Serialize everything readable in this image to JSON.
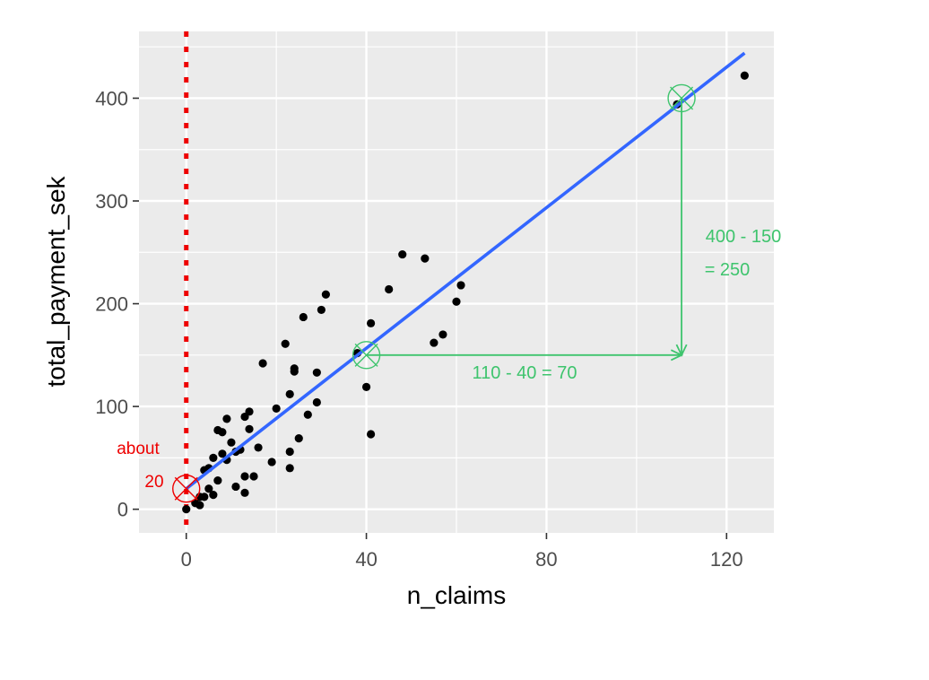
{
  "chart_data": {
    "type": "scatter",
    "xlabel": "n_claims",
    "ylabel": "total_payment_sek",
    "xlim": [
      -10.5,
      130.5
    ],
    "ylim": [
      -23,
      465
    ],
    "x_ticks": [
      0,
      40,
      80,
      120
    ],
    "y_ticks": [
      0,
      100,
      200,
      300,
      400
    ],
    "x_tick_labels": [
      "0",
      "40",
      "80",
      "120"
    ],
    "y_tick_labels": [
      "0",
      "100",
      "200",
      "300",
      "400"
    ],
    "grid": true,
    "points": [
      [
        0,
        0
      ],
      [
        2,
        6
      ],
      [
        3,
        4
      ],
      [
        3,
        12
      ],
      [
        4,
        12
      ],
      [
        4,
        38
      ],
      [
        5,
        20
      ],
      [
        5,
        40
      ],
      [
        6,
        14
      ],
      [
        6,
        50
      ],
      [
        7,
        28
      ],
      [
        7,
        77
      ],
      [
        8,
        54
      ],
      [
        8,
        75
      ],
      [
        9,
        48
      ],
      [
        9,
        88
      ],
      [
        10,
        65
      ],
      [
        11,
        22
      ],
      [
        11,
        56
      ],
      [
        12,
        58
      ],
      [
        13,
        90
      ],
      [
        13,
        32
      ],
      [
        13,
        16
      ],
      [
        14,
        95
      ],
      [
        14,
        78
      ],
      [
        15,
        32
      ],
      [
        16,
        60
      ],
      [
        17,
        142
      ],
      [
        19,
        46
      ],
      [
        20,
        98
      ],
      [
        22,
        161
      ],
      [
        23,
        40
      ],
      [
        23,
        56
      ],
      [
        23,
        112
      ],
      [
        24,
        137
      ],
      [
        24,
        134
      ],
      [
        25,
        69
      ],
      [
        26,
        187
      ],
      [
        27,
        92
      ],
      [
        29,
        104
      ],
      [
        29,
        133
      ],
      [
        30,
        194
      ],
      [
        31,
        209
      ],
      [
        38,
        152
      ],
      [
        40,
        119
      ],
      [
        41,
        73
      ],
      [
        41,
        181
      ],
      [
        45,
        214
      ],
      [
        48,
        248
      ],
      [
        53,
        244
      ],
      [
        55,
        162
      ],
      [
        57,
        170
      ],
      [
        60,
        202
      ],
      [
        61,
        218
      ],
      [
        109,
        394
      ],
      [
        124,
        422
      ]
    ],
    "regression_line": {
      "x": [
        0,
        124
      ],
      "y": [
        19.99,
        443.9
      ],
      "color": "#3366ff"
    },
    "intercept_line": {
      "x": 0,
      "color": "#ee0000",
      "style": "dotted"
    },
    "annotations": {
      "circles": [
        {
          "x": 0,
          "y": 20,
          "color": "#ee0000"
        },
        {
          "x": 40,
          "y": 150,
          "color": "#3ec46d"
        },
        {
          "x": 110,
          "y": 400,
          "color": "#3ec46d"
        }
      ],
      "horizontal_arrow": {
        "from": [
          40,
          150
        ],
        "to": [
          110,
          150
        ],
        "color": "#3ec46d"
      },
      "vertical_arrow": {
        "from": [
          110,
          400
        ],
        "to": [
          110,
          150
        ],
        "color": "#3ec46d"
      },
      "run_label": "110 - 40 = 70",
      "rise_label_line1": "400 - 150",
      "rise_label_line2": "= 250",
      "intercept_label_line1": "about",
      "intercept_label_line2": "20"
    }
  }
}
